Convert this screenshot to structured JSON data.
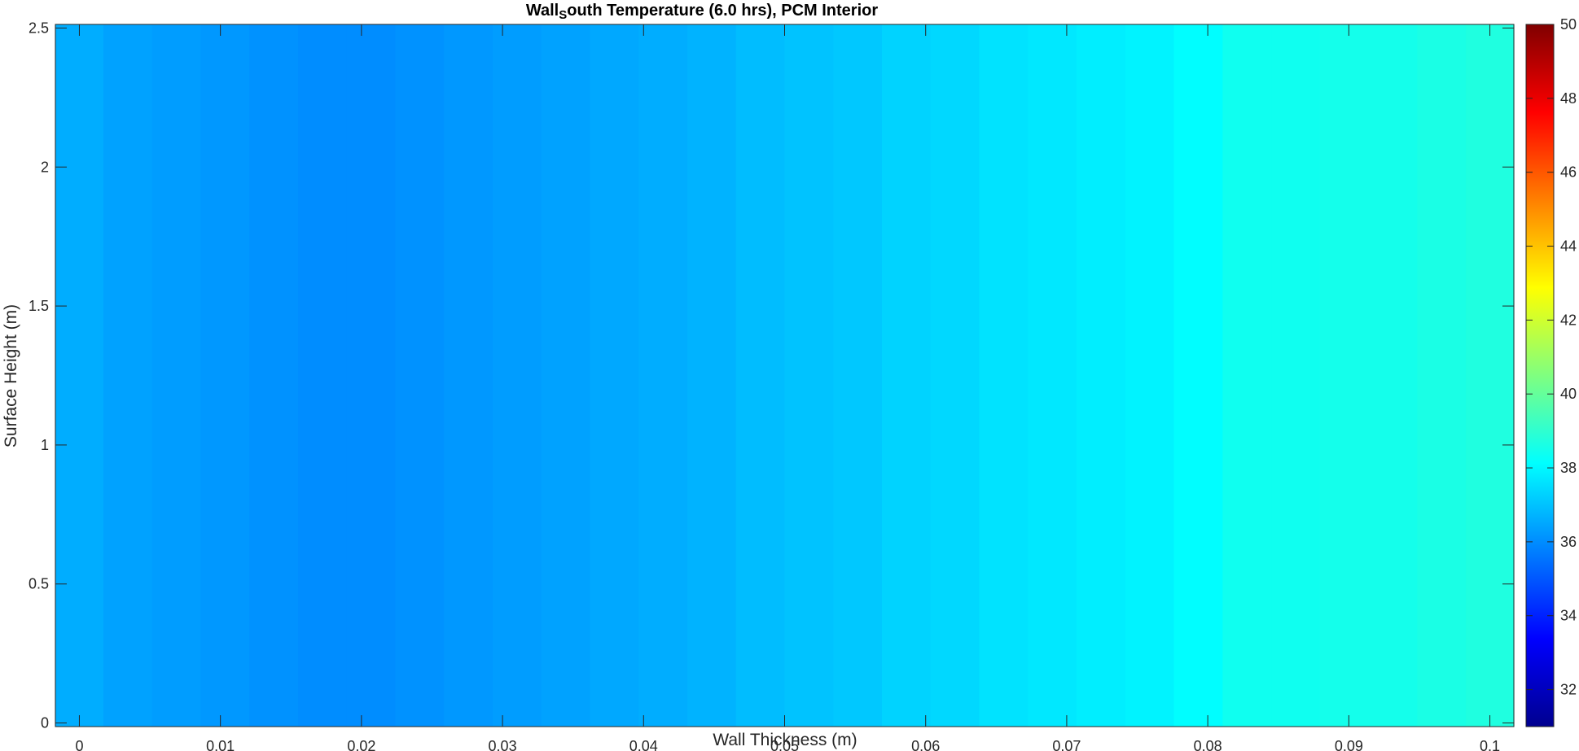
{
  "chart_data": {
    "type": "heatmap",
    "title_parts": {
      "prefix": "Wall",
      "subscript": "S",
      "suffix": "outh  Temperature  (6.0  hrs),  PCM  Interior"
    },
    "xlabel": "Wall Thickness (m)",
    "ylabel": "Surface Height (m)",
    "xlim": [
      -0.0017,
      0.1017
    ],
    "ylim": [
      -0.013,
      2.513
    ],
    "xticks": [
      0,
      0.01,
      0.02,
      0.03,
      0.04,
      0.05,
      0.06,
      0.07,
      0.08,
      0.09,
      0.1
    ],
    "xtick_labels": [
      "0",
      "0.01",
      "0.02",
      "0.03",
      "0.04",
      "0.05",
      "0.06",
      "0.07",
      "0.08",
      "0.09",
      "0.1"
    ],
    "yticks": [
      0,
      0.5,
      1,
      1.5,
      2,
      2.5
    ],
    "ytick_labels": [
      "0",
      "0.5",
      "1",
      "1.5",
      "2",
      "2.5"
    ],
    "colormap": "jet",
    "clim": [
      31,
      50
    ],
    "colorbar_ticks": [
      32,
      34,
      36,
      38,
      40,
      42,
      44,
      46,
      48,
      50
    ],
    "colorbar_tick_labels": [
      "32",
      "34",
      "36",
      "38",
      "40",
      "42",
      "44",
      "46",
      "48",
      "50"
    ],
    "x_centers": [
      0,
      0.0034,
      0.0069,
      0.0103,
      0.0138,
      0.0172,
      0.0207,
      0.0241,
      0.0276,
      0.031,
      0.0345,
      0.0379,
      0.0414,
      0.0448,
      0.0483,
      0.0517,
      0.0552,
      0.0586,
      0.0621,
      0.0655,
      0.069,
      0.0724,
      0.0759,
      0.0793,
      0.0828,
      0.0862,
      0.0897,
      0.0931,
      0.0966,
      0.1
    ],
    "column_temperatures": [
      36.6,
      36.4,
      36.3,
      36.2,
      36.1,
      36.0,
      36.0,
      36.1,
      36.2,
      36.3,
      36.4,
      36.5,
      36.6,
      36.7,
      36.9,
      37.0,
      37.1,
      37.3,
      37.4,
      37.6,
      37.7,
      37.8,
      37.9,
      38.1,
      38.4,
      38.4,
      38.5,
      38.5,
      38.6,
      38.7
    ]
  }
}
